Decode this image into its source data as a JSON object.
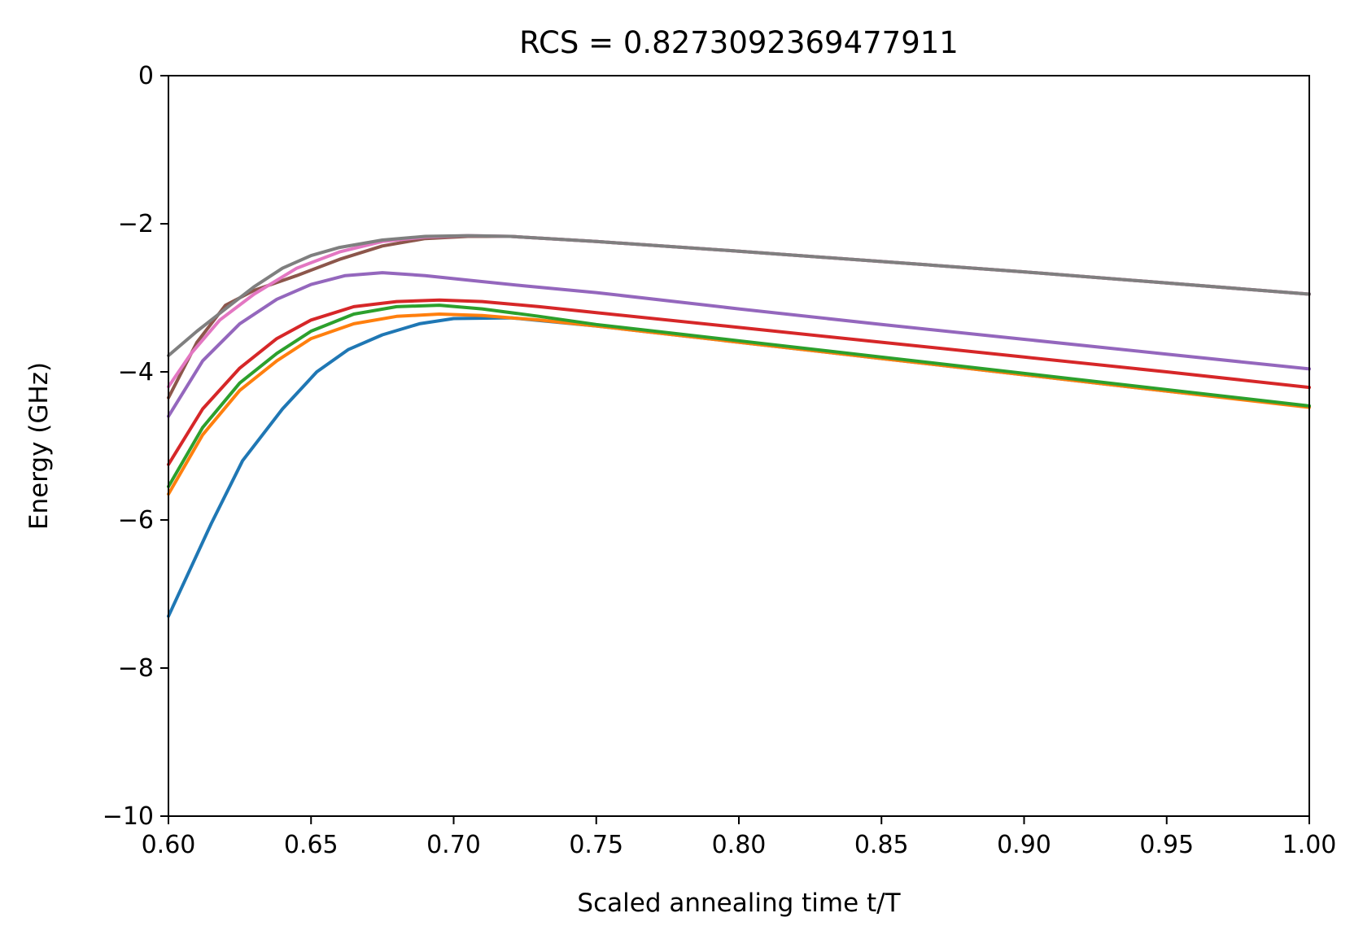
{
  "chart_data": {
    "type": "line",
    "title": "RCS = 0.8273092369477911",
    "xlabel": "Scaled annealing time t/T",
    "ylabel": "Energy (GHz)",
    "xlim": [
      0.6,
      1.0
    ],
    "ylim": [
      -10,
      0
    ],
    "xticks": [
      0.6,
      0.65,
      0.7,
      0.75,
      0.8,
      0.85,
      0.9,
      0.95,
      1.0
    ],
    "xtick_labels": [
      "0.60",
      "0.65",
      "0.70",
      "0.75",
      "0.80",
      "0.85",
      "0.90",
      "0.95",
      "1.00"
    ],
    "yticks": [
      0,
      -2,
      -4,
      -6,
      -8,
      -10
    ],
    "ytick_labels": [
      "0",
      "−2",
      "−4",
      "−6",
      "−8",
      "−10"
    ],
    "grid": false,
    "series": [
      {
        "color": "#1f77b4",
        "x": [
          0.6,
          0.615,
          0.626,
          0.64,
          0.652,
          0.663,
          0.675,
          0.688,
          0.7,
          0.72,
          0.75,
          0.8,
          0.85,
          0.9,
          0.95,
          1.0
        ],
        "y": [
          -7.3,
          -6.05,
          -5.2,
          -4.5,
          -4.0,
          -3.7,
          -3.5,
          -3.35,
          -3.28,
          -3.27,
          -3.38,
          -3.6,
          -3.82,
          -4.04,
          -4.26,
          -4.47
        ]
      },
      {
        "color": "#ff7f0e",
        "x": [
          0.6,
          0.612,
          0.625,
          0.638,
          0.65,
          0.665,
          0.68,
          0.695,
          0.71,
          0.73,
          0.75,
          0.8,
          0.85,
          0.9,
          0.95,
          1.0
        ],
        "y": [
          -5.65,
          -4.85,
          -4.25,
          -3.85,
          -3.55,
          -3.35,
          -3.25,
          -3.22,
          -3.24,
          -3.3,
          -3.38,
          -3.6,
          -3.82,
          -4.04,
          -4.26,
          -4.48
        ]
      },
      {
        "color": "#2ca02c",
        "x": [
          0.6,
          0.612,
          0.625,
          0.638,
          0.65,
          0.665,
          0.68,
          0.695,
          0.71,
          0.73,
          0.75,
          0.8,
          0.85,
          0.9,
          0.95,
          1.0
        ],
        "y": [
          -5.55,
          -4.75,
          -4.15,
          -3.75,
          -3.45,
          -3.22,
          -3.12,
          -3.1,
          -3.15,
          -3.25,
          -3.36,
          -3.58,
          -3.8,
          -4.02,
          -4.24,
          -4.46
        ]
      },
      {
        "color": "#d62728",
        "x": [
          0.6,
          0.612,
          0.625,
          0.638,
          0.65,
          0.665,
          0.68,
          0.695,
          0.71,
          0.73,
          0.75,
          0.8,
          0.85,
          0.9,
          0.95,
          1.0
        ],
        "y": [
          -5.25,
          -4.5,
          -3.95,
          -3.55,
          -3.3,
          -3.12,
          -3.05,
          -3.03,
          -3.05,
          -3.12,
          -3.2,
          -3.4,
          -3.6,
          -3.8,
          -4.0,
          -4.21
        ]
      },
      {
        "color": "#9467bd",
        "x": [
          0.6,
          0.612,
          0.625,
          0.638,
          0.65,
          0.662,
          0.675,
          0.69,
          0.705,
          0.725,
          0.75,
          0.8,
          0.85,
          0.9,
          0.95,
          1.0
        ],
        "y": [
          -4.6,
          -3.85,
          -3.35,
          -3.02,
          -2.82,
          -2.7,
          -2.66,
          -2.7,
          -2.76,
          -2.84,
          -2.93,
          -3.15,
          -3.36,
          -3.56,
          -3.76,
          -3.96
        ]
      },
      {
        "color": "#8c564b",
        "x": [
          0.6,
          0.61,
          0.62,
          0.63,
          0.645,
          0.66,
          0.675,
          0.69,
          0.705,
          0.72,
          0.75,
          0.8,
          0.85,
          0.9,
          0.95,
          1.0
        ],
        "y": [
          -4.35,
          -3.6,
          -3.1,
          -2.9,
          -2.7,
          -2.48,
          -2.3,
          -2.2,
          -2.17,
          -2.17,
          -2.24,
          -2.37,
          -2.51,
          -2.65,
          -2.8,
          -2.95
        ]
      },
      {
        "color": "#e377c2",
        "x": [
          0.6,
          0.608,
          0.618,
          0.63,
          0.645,
          0.66,
          0.675,
          0.69,
          0.705,
          0.72,
          0.75,
          0.8,
          0.85,
          0.9,
          0.95,
          1.0
        ],
        "y": [
          -4.2,
          -3.75,
          -3.3,
          -2.95,
          -2.6,
          -2.38,
          -2.24,
          -2.18,
          -2.16,
          -2.17,
          -2.24,
          -2.37,
          -2.51,
          -2.65,
          -2.8,
          -2.95
        ]
      },
      {
        "color": "#7f7f7f",
        "x": [
          0.6,
          0.61,
          0.62,
          0.63,
          0.64,
          0.65,
          0.66,
          0.675,
          0.69,
          0.705,
          0.72,
          0.75,
          0.8,
          0.85,
          0.9,
          0.95,
          1.0
        ],
        "y": [
          -3.78,
          -3.45,
          -3.15,
          -2.85,
          -2.6,
          -2.43,
          -2.32,
          -2.22,
          -2.17,
          -2.16,
          -2.17,
          -2.24,
          -2.37,
          -2.51,
          -2.65,
          -2.8,
          -2.95
        ]
      }
    ]
  }
}
